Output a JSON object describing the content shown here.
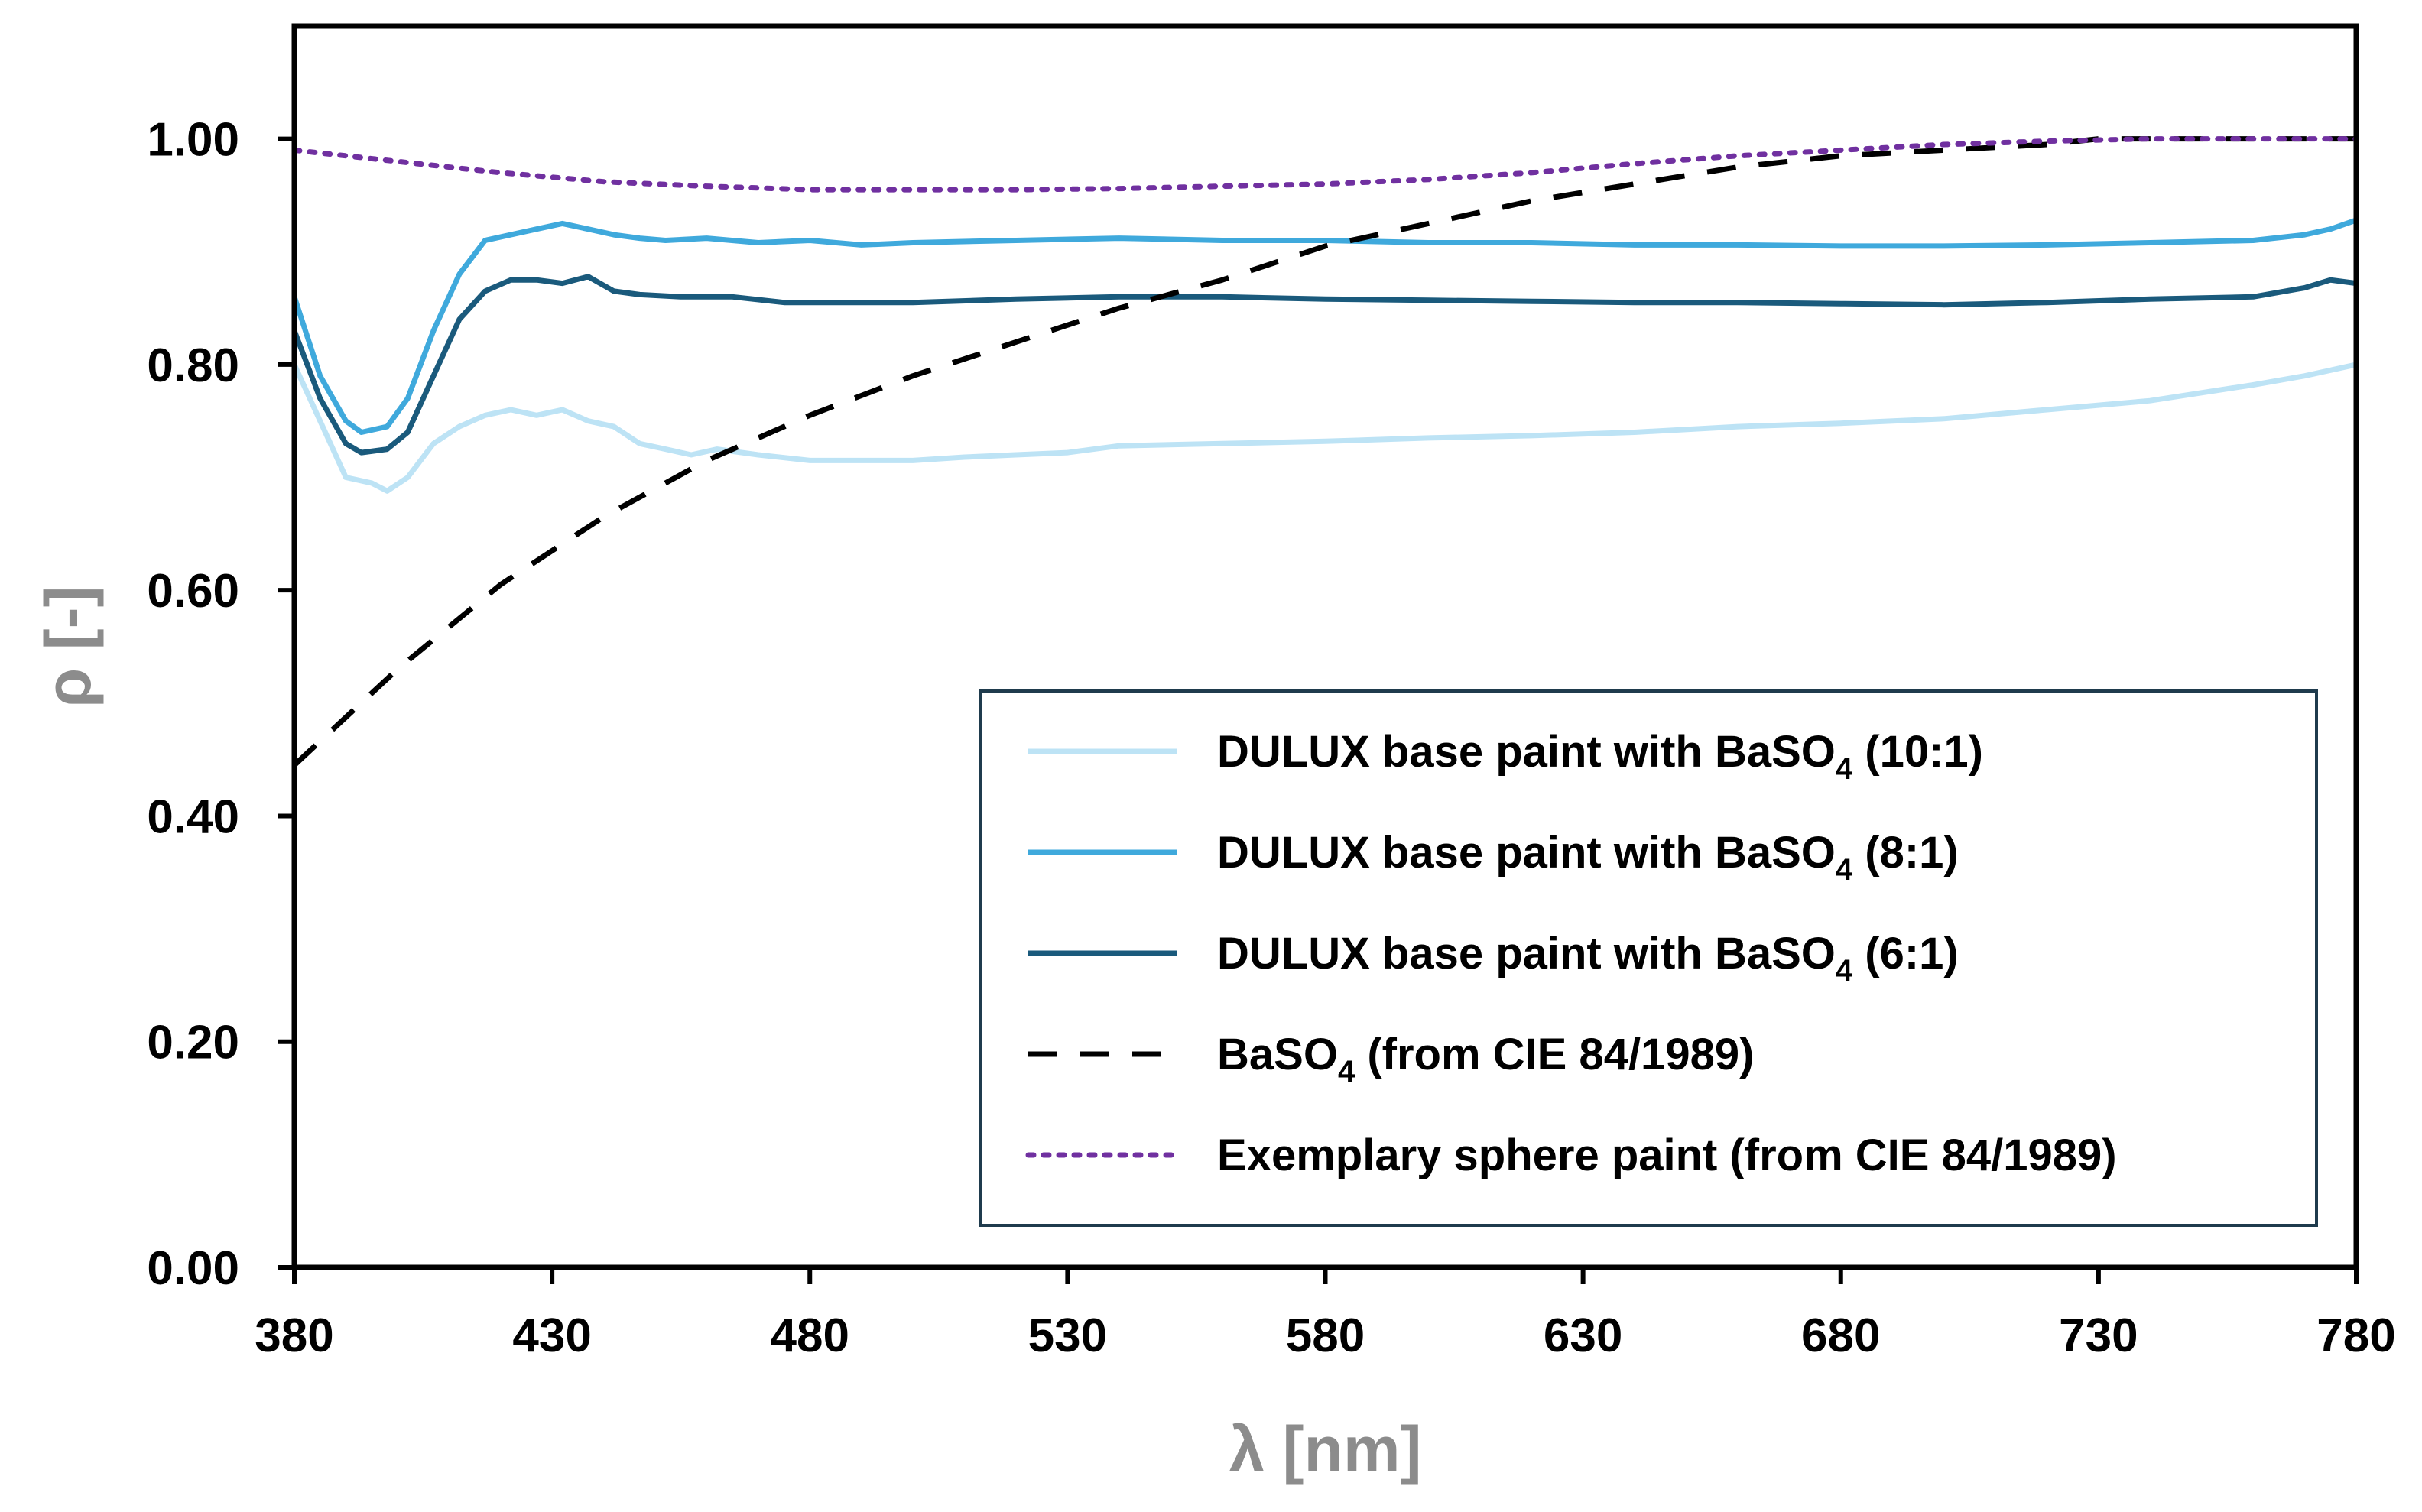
{
  "chart_data": {
    "type": "line",
    "title": "",
    "xlabel": "λ [nm]",
    "ylabel": "ρ [-]",
    "xlim": [
      380,
      780
    ],
    "ylim": [
      0,
      1.1
    ],
    "x_ticks": [
      380,
      430,
      480,
      530,
      580,
      630,
      680,
      730,
      780
    ],
    "x_tick_labels": [
      "380",
      "430",
      "480",
      "530",
      "580",
      "630",
      "680",
      "730",
      "780"
    ],
    "y_ticks": [
      0,
      0.2,
      0.4,
      0.6,
      0.8,
      1.0
    ],
    "y_tick_labels": [
      "0.00",
      "0.20",
      "0.40",
      "0.60",
      "0.80",
      "1.00"
    ],
    "grid": false,
    "legend_position": "bottom-right",
    "series": [
      {
        "name": "DULUX base paint with BaSO4 (10:1)",
        "legend_main": "DULUX base paint with BaSO",
        "legend_sub": "4",
        "legend_tail": " (10:1)",
        "color": "#bde3f5",
        "dash": "solid",
        "x": [
          380,
          385,
          390,
          395,
          398,
          402,
          407,
          412,
          417,
          422,
          427,
          432,
          437,
          442,
          447,
          452,
          457,
          462,
          470,
          480,
          490,
          500,
          510,
          520,
          530,
          540,
          560,
          580,
          600,
          620,
          640,
          660,
          680,
          700,
          720,
          740,
          750,
          760,
          770,
          780
        ],
        "y": [
          0.8,
          0.75,
          0.7,
          0.695,
          0.688,
          0.7,
          0.73,
          0.745,
          0.755,
          0.76,
          0.755,
          0.76,
          0.75,
          0.745,
          0.73,
          0.725,
          0.72,
          0.725,
          0.72,
          0.715,
          0.715,
          0.715,
          0.718,
          0.72,
          0.722,
          0.728,
          0.73,
          0.732,
          0.735,
          0.737,
          0.74,
          0.745,
          0.748,
          0.752,
          0.76,
          0.768,
          0.775,
          0.782,
          0.79,
          0.8
        ]
      },
      {
        "name": "DULUX base paint with BaSO4 (8:1)",
        "legend_main": "DULUX base paint with BaSO",
        "legend_sub": "4",
        "legend_tail": " (8:1)",
        "color": "#3fa9dc",
        "dash": "solid",
        "x": [
          380,
          385,
          390,
          393,
          398,
          402,
          407,
          412,
          417,
          422,
          427,
          432,
          437,
          442,
          447,
          452,
          460,
          470,
          480,
          490,
          500,
          520,
          540,
          560,
          580,
          600,
          620,
          640,
          660,
          680,
          700,
          720,
          740,
          760,
          770,
          775,
          780
        ],
        "y": [
          0.86,
          0.79,
          0.75,
          0.74,
          0.745,
          0.77,
          0.83,
          0.88,
          0.91,
          0.915,
          0.92,
          0.925,
          0.92,
          0.915,
          0.912,
          0.91,
          0.912,
          0.908,
          0.91,
          0.906,
          0.908,
          0.91,
          0.912,
          0.91,
          0.91,
          0.908,
          0.908,
          0.906,
          0.906,
          0.905,
          0.905,
          0.906,
          0.908,
          0.91,
          0.915,
          0.92,
          0.928
        ]
      },
      {
        "name": "DULUX base paint with BaSO4 (6:1)",
        "legend_main": "DULUX base paint with BaSO",
        "legend_sub": "4",
        "legend_tail": " (6:1)",
        "color": "#1a5a7c",
        "dash": "solid",
        "x": [
          380,
          385,
          390,
          393,
          398,
          402,
          407,
          412,
          417,
          422,
          427,
          432,
          437,
          442,
          447,
          455,
          465,
          475,
          480,
          490,
          500,
          520,
          540,
          560,
          580,
          600,
          620,
          640,
          660,
          680,
          700,
          720,
          740,
          760,
          770,
          775,
          780
        ],
        "y": [
          0.83,
          0.77,
          0.73,
          0.722,
          0.725,
          0.74,
          0.79,
          0.84,
          0.865,
          0.875,
          0.875,
          0.872,
          0.878,
          0.865,
          0.862,
          0.86,
          0.86,
          0.855,
          0.855,
          0.855,
          0.855,
          0.858,
          0.86,
          0.86,
          0.858,
          0.857,
          0.856,
          0.855,
          0.855,
          0.854,
          0.853,
          0.855,
          0.858,
          0.86,
          0.868,
          0.875,
          0.872
        ]
      },
      {
        "name": "BaSO4 (from CIE 84/1989)",
        "legend_main": "BaSO",
        "legend_sub": "4",
        "legend_tail": " (from CIE 84/1989)",
        "color": "#000000",
        "dash": "dashed",
        "x": [
          380,
          400,
          420,
          440,
          460,
          480,
          500,
          520,
          540,
          560,
          580,
          600,
          620,
          640,
          660,
          680,
          700,
          720,
          730,
          740,
          760,
          780
        ],
        "y": [
          0.445,
          0.53,
          0.605,
          0.665,
          0.715,
          0.755,
          0.79,
          0.82,
          0.85,
          0.875,
          0.905,
          0.925,
          0.945,
          0.96,
          0.975,
          0.985,
          0.99,
          0.995,
          1.0,
          1.0,
          1.0,
          1.0
        ]
      },
      {
        "name": "Exemplary sphere paint (from CIE 84/1989)",
        "legend_main": "Exemplary sphere paint (from CIE 84/1989)",
        "legend_sub": "",
        "legend_tail": "",
        "color": "#7030a0",
        "dash": "dotted",
        "x": [
          380,
          400,
          420,
          440,
          460,
          480,
          500,
          520,
          540,
          560,
          580,
          600,
          620,
          640,
          660,
          680,
          700,
          720,
          740,
          760,
          780
        ],
        "y": [
          0.99,
          0.98,
          0.97,
          0.962,
          0.958,
          0.955,
          0.955,
          0.955,
          0.956,
          0.958,
          0.96,
          0.964,
          0.97,
          0.978,
          0.985,
          0.99,
          0.995,
          0.998,
          1.0,
          1.0,
          1.0
        ]
      }
    ]
  }
}
